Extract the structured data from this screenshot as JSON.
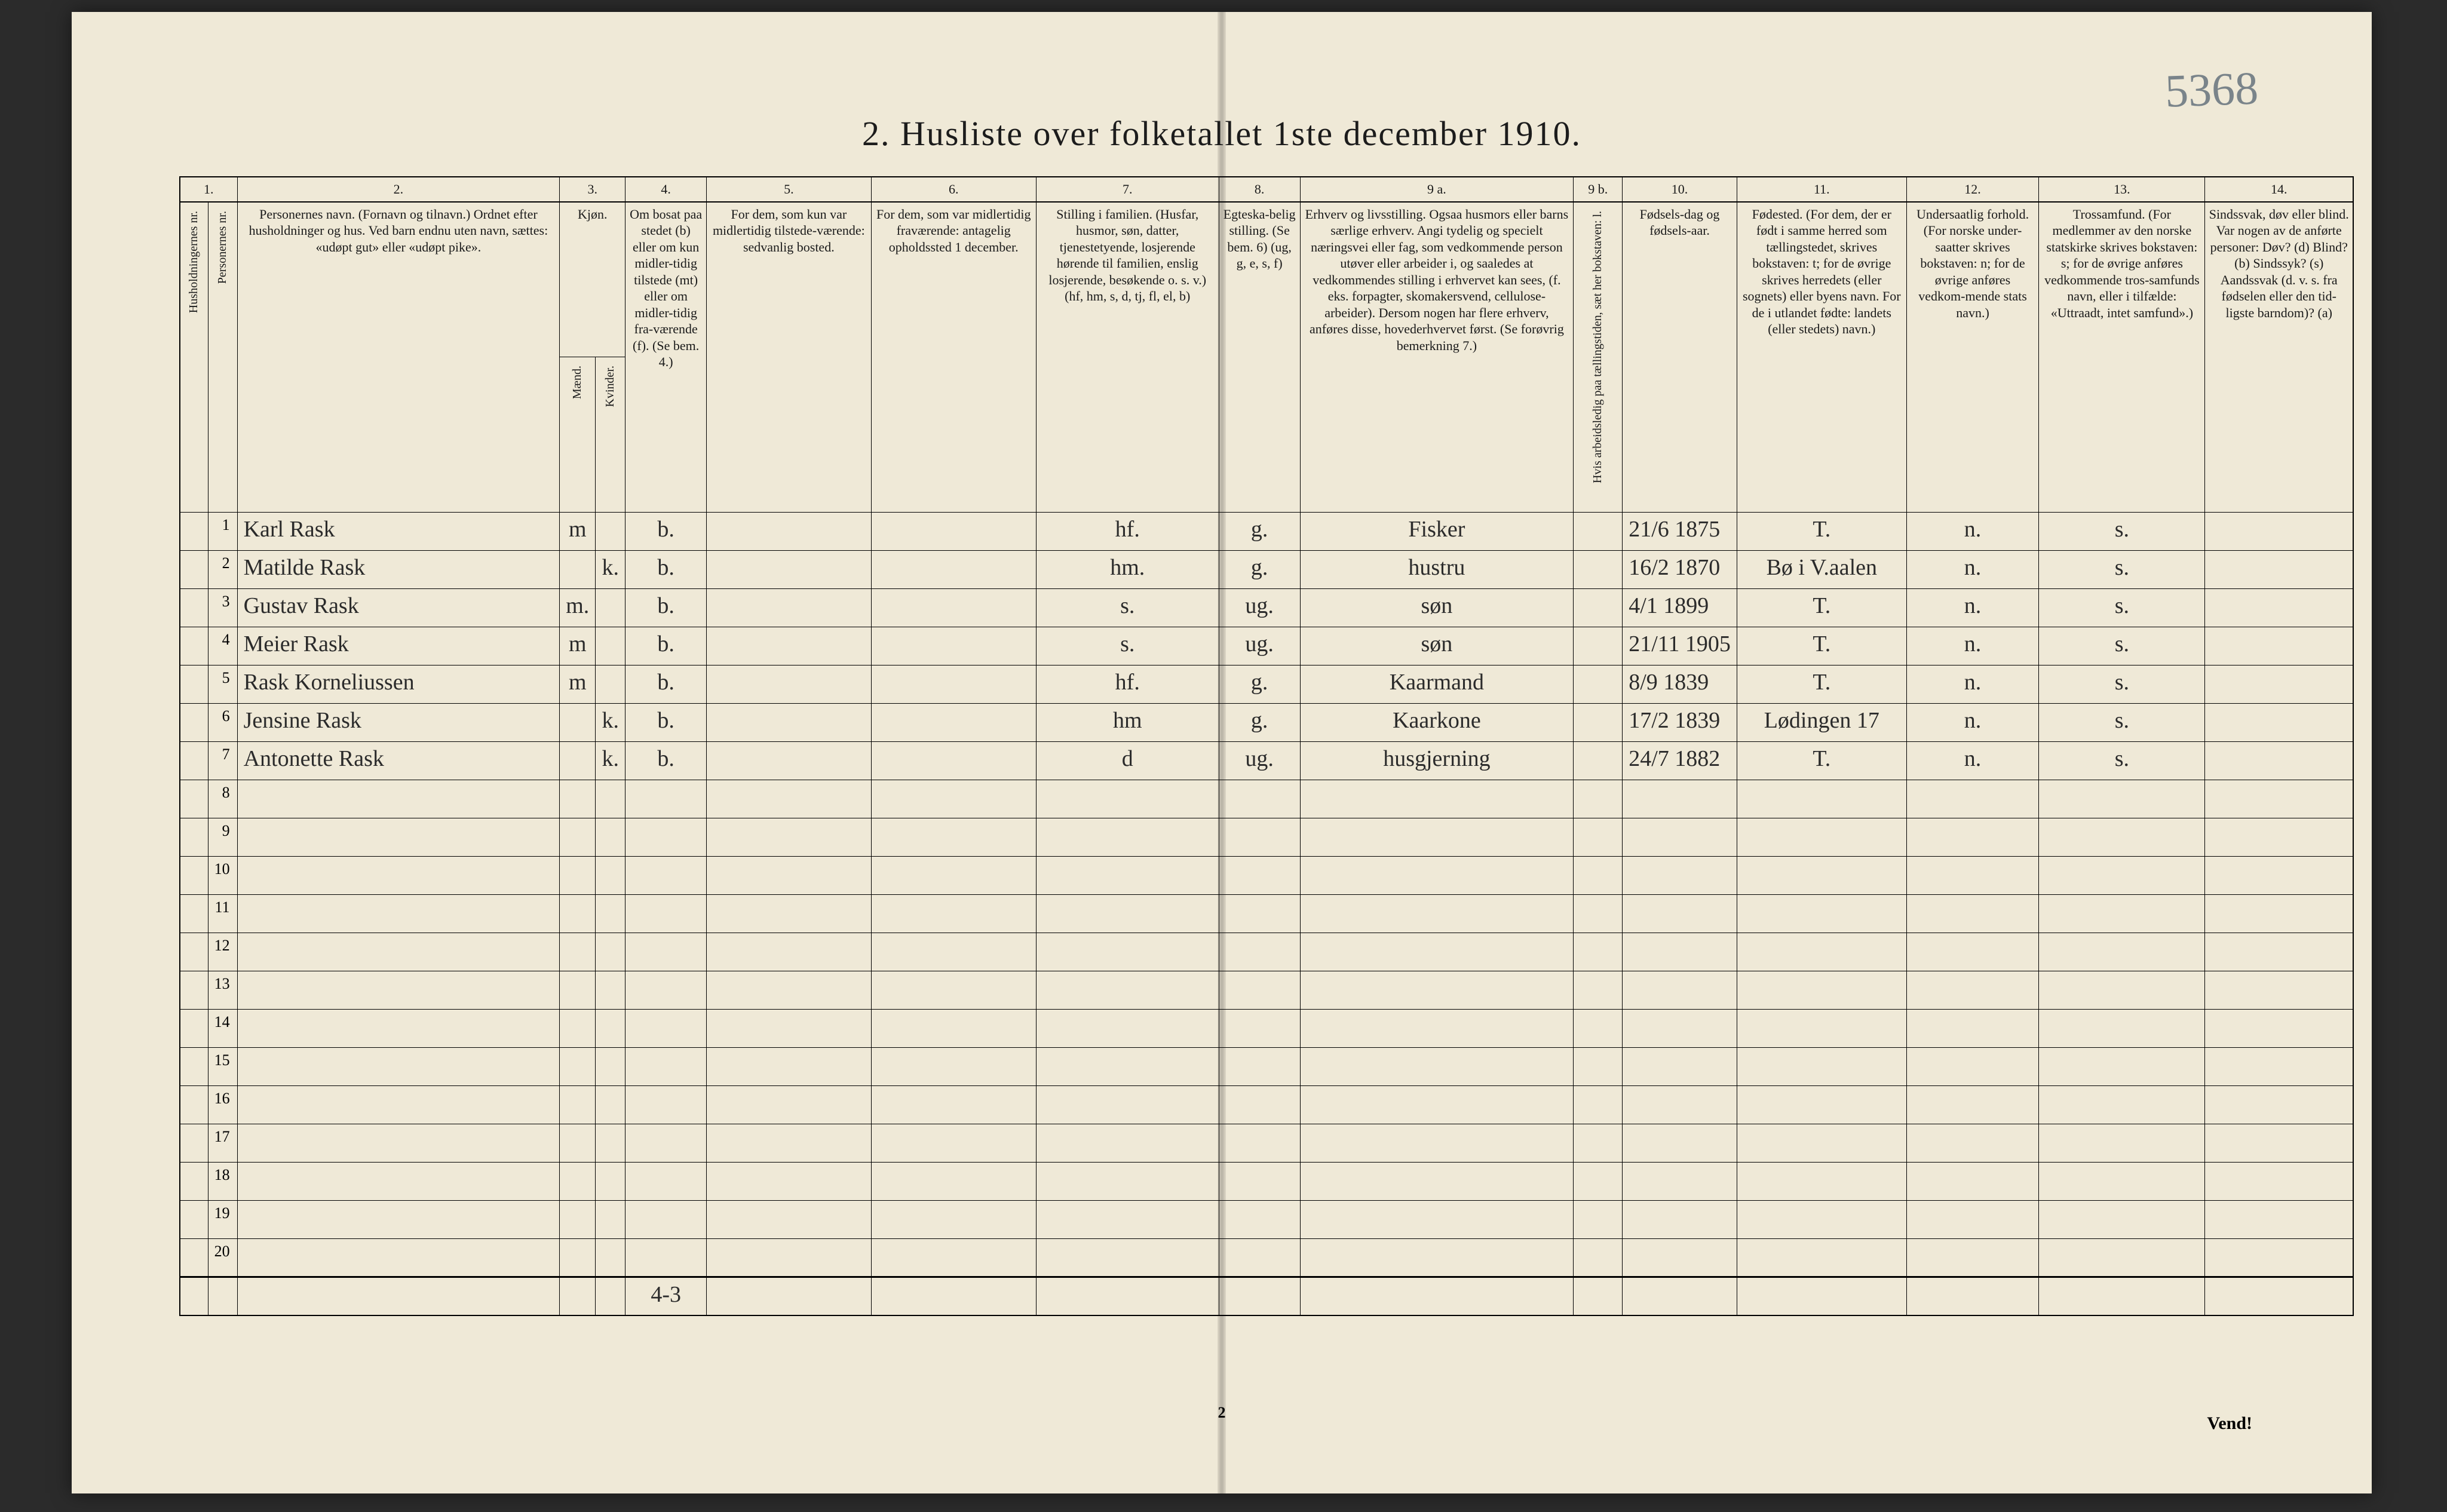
{
  "page_annotation": "5368",
  "title": "2.  Husliste over folketallet 1ste december 1910.",
  "column_numbers": [
    "1.",
    "",
    "2.",
    "3.",
    "",
    "4.",
    "5.",
    "6.",
    "7.",
    "8.",
    "9 a.",
    "9 b.",
    "10.",
    "11.",
    "12.",
    "13.",
    "14."
  ],
  "headers": {
    "c1": "Husholdningernes nr.",
    "c1b": "Personernes nr.",
    "c2": "Personernes navn.\n(Fornavn og tilnavn.)\nOrdnet efter husholdninger og hus.\nVed barn endnu uten navn, sættes: «udøpt gut» eller «udøpt pike».",
    "c3": "Kjøn.",
    "c3a": "Mænd.",
    "c3b": "Kvinder.",
    "c4": "Om bosat paa stedet (b) eller om kun midler-tidig tilstede (mt) eller om midler-tidig fra-værende (f). (Se bem. 4.)",
    "c5": "For dem, som kun var midlertidig tilstede-værende: sedvanlig bosted.",
    "c6": "For dem, som var midlertidig fraværende: antagelig opholdssted 1 december.",
    "c7": "Stilling i familien.\n(Husfar, husmor, søn, datter, tjenestetyende, losjerende hørende til familien, enslig losjerende, besøkende o. s. v.)\n(hf, hm, s, d, tj, fl, el, b)",
    "c8": "Egteska-belig stilling. (Se bem. 6) (ug, g, e, s, f)",
    "c9a": "Erhverv og livsstilling.\nOgsaa husmors eller barns særlige erhverv. Angi tydelig og specielt næringsvei eller fag, som vedkommende person utøver eller arbeider i, og saaledes at vedkommendes stilling i erhvervet kan sees, (f. eks. forpagter, skomakersvend, cellulose-arbeider). Dersom nogen har flere erhverv, anføres disse, hovederhvervet først. (Se forøvrig bemerkning 7.)",
    "c9b": "Hvis arbeidsledig paa tællingstiden, sæt her bokstaven: l.",
    "c10": "Fødsels-dag og fødsels-aar.",
    "c11": "Fødested.\n(For dem, der er født i samme herred som tællingstedet, skrives bokstaven: t; for de øvrige skrives herredets (eller sognets) eller byens navn. For de i utlandet fødte: landets (eller stedets) navn.)",
    "c12": "Undersaatlig forhold.\n(For norske under-saatter skrives bokstaven: n; for de øvrige anføres vedkom-mende stats navn.)",
    "c13": "Trossamfund.\n(For medlemmer av den norske statskirke skrives bokstaven: s; for de øvrige anføres vedkommende tros-samfunds navn, eller i tilfælde: «Uttraadt, intet samfund».)",
    "c14": "Sindssvak, døv eller blind.\nVar nogen av de anførte personer:\nDøv?    (d)\nBlind?   (b)\nSindssyk? (s)\nAandssvak (d. v. s. fra fødselen eller den tid-ligste barndom)? (a)"
  },
  "rows": [
    {
      "n": "1",
      "name": "Karl Rask",
      "m": "m",
      "k": "",
      "bosat": "b.",
      "c5": "",
      "c6": "",
      "fam": "hf.",
      "eg": "g.",
      "erhv": "Fisker",
      "led": "",
      "fdato": "21/6 1875",
      "fsted": "T.",
      "und": "n.",
      "tro": "s.",
      "ssv": ""
    },
    {
      "n": "2",
      "name": "Matilde Rask",
      "m": "",
      "k": "k.",
      "bosat": "b.",
      "c5": "",
      "c6": "",
      "fam": "hm.",
      "eg": "g.",
      "erhv": "hustru",
      "led": "",
      "fdato": "16/2 1870",
      "fsted": "Bø i V.aalen",
      "und": "n.",
      "tro": "s.",
      "ssv": ""
    },
    {
      "n": "3",
      "name": "Gustav Rask",
      "m": "m.",
      "k": "",
      "bosat": "b.",
      "c5": "",
      "c6": "",
      "fam": "s.",
      "eg": "ug.",
      "erhv": "søn",
      "led": "",
      "fdato": "4/1 1899",
      "fsted": "T.",
      "und": "n.",
      "tro": "s.",
      "ssv": ""
    },
    {
      "n": "4",
      "name": "Meier Rask",
      "m": "m",
      "k": "",
      "bosat": "b.",
      "c5": "",
      "c6": "",
      "fam": "s.",
      "eg": "ug.",
      "erhv": "søn",
      "led": "",
      "fdato": "21/11 1905",
      "fsted": "T.",
      "und": "n.",
      "tro": "s.",
      "ssv": ""
    },
    {
      "n": "5",
      "name": "Rask Korneliussen",
      "m": "m",
      "k": "",
      "bosat": "b.",
      "c5": "",
      "c6": "",
      "fam": "hf.",
      "eg": "g.",
      "erhv": "Kaarmand",
      "led": "",
      "fdato": "8/9 1839",
      "fsted": "T.",
      "und": "n.",
      "tro": "s.",
      "ssv": ""
    },
    {
      "n": "6",
      "name": "Jensine Rask",
      "m": "",
      "k": "k.",
      "bosat": "b.",
      "c5": "",
      "c6": "",
      "fam": "hm",
      "eg": "g.",
      "erhv": "Kaarkone",
      "led": "",
      "fdato": "17/2 1839",
      "fsted": "Lødingen 17",
      "und": "n.",
      "tro": "s.",
      "ssv": ""
    },
    {
      "n": "7",
      "name": "Antonette Rask",
      "m": "",
      "k": "k.",
      "bosat": "b.",
      "c5": "",
      "c6": "",
      "fam": "d",
      "eg": "ug.",
      "erhv": "husgjerning",
      "led": "",
      "fdato": "24/7 1882",
      "fsted": "T.",
      "und": "n.",
      "tro": "s.",
      "ssv": ""
    }
  ],
  "empty_row_numbers": [
    "8",
    "9",
    "10",
    "11",
    "12",
    "13",
    "14",
    "15",
    "16",
    "17",
    "18",
    "19",
    "20"
  ],
  "footer_annotation": "4-3",
  "footer_page": "2",
  "vend": "Vend!"
}
